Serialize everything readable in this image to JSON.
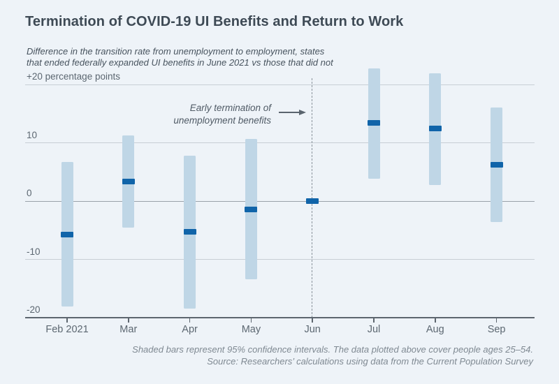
{
  "title": "Termination of COVID-19 UI Benefits and Return to Work",
  "subtitle": "Difference in the transition rate from unemployment to employment, states\nthat ended federally expanded UI benefits in June 2021 vs those that did not",
  "annotation": {
    "text": "Early termination of\nunemployment benefits"
  },
  "footnote": "Shaded bars represent 95% confidence intervals. The data plotted above cover people ages 25–54.\nSource: Researchers’ calculations using data from the Current Population Survey",
  "colors": {
    "background": "#eef3f8",
    "ci_bar": "#bfd6e6",
    "estimate": "#1064a9",
    "gridline": "#c7ced5",
    "zero_line": "#99a1aa",
    "axis_line": "#5d666f",
    "dashed_line": "#8a939b",
    "title_text": "#3e4a55",
    "axis_text": "#5c6771"
  },
  "chart_data": {
    "type": "bar",
    "subtype": "interval_estimate",
    "title": "Termination of COVID-19 UI Benefits and Return to Work",
    "xlabel": "",
    "ylabel": "percentage points",
    "categories": [
      "Feb 2021",
      "Mar",
      "Apr",
      "May",
      "Jun",
      "Jul",
      "Aug",
      "Sep"
    ],
    "series": [
      {
        "name": "point_estimate",
        "values": [
          -5.8,
          3.3,
          -5.3,
          -1.4,
          0,
          13.4,
          12.4,
          6.2
        ]
      },
      {
        "name": "ci_lower_95",
        "values": [
          -18.1,
          -4.6,
          -18.4,
          -13.4,
          null,
          3.8,
          2.7,
          -3.6
        ]
      },
      {
        "name": "ci_upper_95",
        "values": [
          6.7,
          11.3,
          7.8,
          10.7,
          null,
          22.7,
          21.9,
          16.0
        ]
      }
    ],
    "y_ticks": [
      {
        "value": 20,
        "label": "+20 percentage points"
      },
      {
        "value": 10,
        "label": "10"
      },
      {
        "value": 0,
        "label": "0"
      },
      {
        "value": -10,
        "label": "-10"
      },
      {
        "value": -20,
        "label": "-20"
      }
    ],
    "ylim": [
      -20,
      23
    ],
    "grid": "horizontal",
    "legend": "none",
    "event_line": {
      "category": "Jun",
      "style": "dashed",
      "label": "Early termination of unemployment benefits"
    }
  }
}
